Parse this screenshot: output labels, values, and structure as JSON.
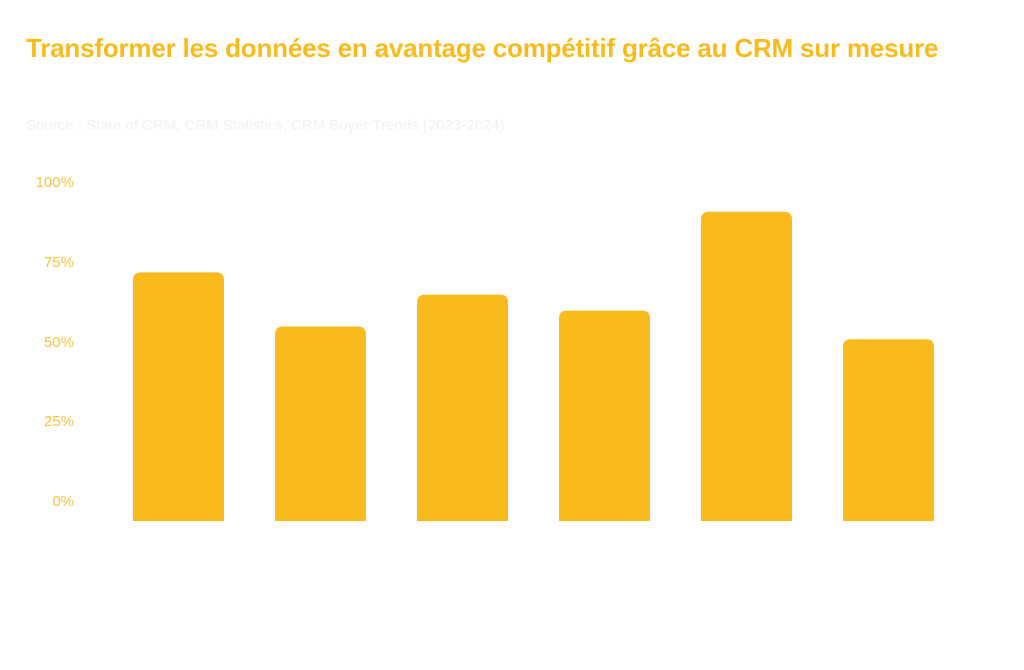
{
  "chart_data": {
    "type": "bar",
    "title": "Transformer les données en avantage compétitif grâce au CRM sur mesure",
    "subtitle": "Source : State of CRM, CRM Statistics, CRM Buyer Trends (2023-2024)",
    "xlabel": "",
    "ylabel": "",
    "categories": [
      "",
      "",
      "",
      "",
      "",
      ""
    ],
    "values": [
      72,
      55,
      65,
      60,
      91,
      51
    ],
    "ylim": [
      0,
      100
    ],
    "yticks": [
      {
        "value": 100,
        "label": "100%"
      },
      {
        "value": 75,
        "label": "75%"
      },
      {
        "value": 50,
        "label": "50%"
      },
      {
        "value": 25,
        "label": "25%"
      },
      {
        "value": 0,
        "label": "0%"
      }
    ],
    "grid": false,
    "legend": "none",
    "colors": {
      "bar": "#F8BA1C",
      "title": "#F9BB1C",
      "tick": "#F9C235",
      "subtitle": "#F0F0F0"
    }
  }
}
